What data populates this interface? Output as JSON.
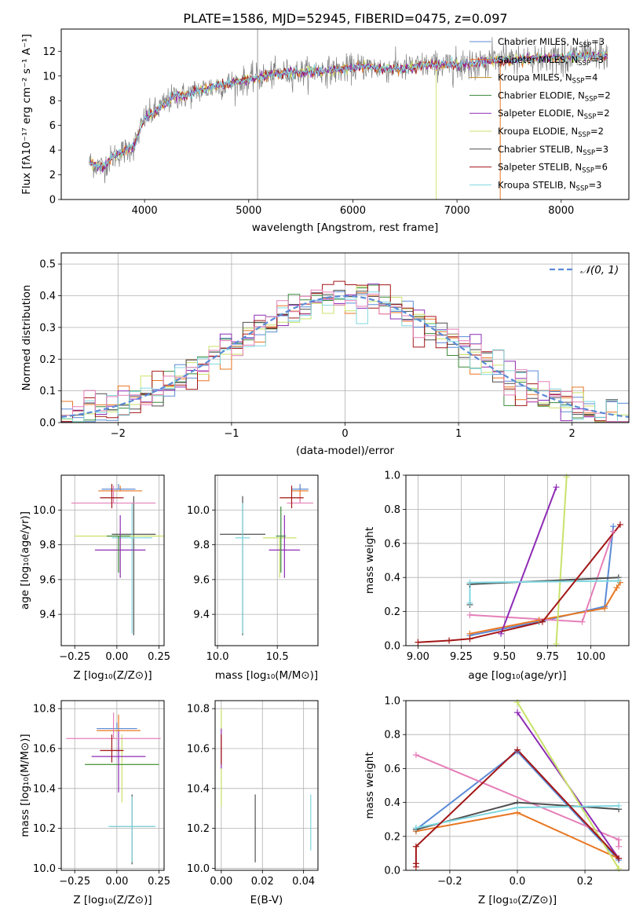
{
  "colors": {
    "c1": "#5b8bd6",
    "c2": "#e87722",
    "c3": "#c08a1d",
    "c4": "#3a8a3a",
    "c5": "#8e2bb5",
    "c6": "#c9e26a",
    "c7": "#4f4f4f",
    "c8": "#a31616",
    "c9": "#7fd7e0",
    "pink": "#e57fb8",
    "normal": "#5b8bd6"
  },
  "chart_data": [
    {
      "type": "line",
      "title": "PLATE=1586, MJD=52945, FIBERID=0475, z=0.097",
      "xlabel": "wavelength [Angstrom, rest frame]",
      "ylabel": "Flux [fλ10⁻¹⁷ erg cm⁻² s⁻¹ A⁻¹]",
      "xlim": [
        3200,
        8650
      ],
      "ylim": [
        0,
        13.8
      ],
      "xticks": [
        "4000",
        "5000",
        "6000",
        "7000",
        "8000"
      ],
      "yticks": [
        "0",
        "2",
        "4",
        "6",
        "8",
        "10",
        "12"
      ],
      "legend": [
        "Chabrier MILES, N_SSP=3",
        "Salpeter MILES, N_SSP=3",
        "Kroupa MILES, N_SSP=4",
        "Chabrier ELODIE, N_SSP=2",
        "Salpeter ELODIE, N_SSP=2",
        "Kroupa ELODIE, N_SSP=2",
        "Chabrier STELIB, N_SSP=3",
        "Salpeter STELIB, N_SSP=6",
        "Kroupa STELIB, N_SSP=3"
      ],
      "legend_display": [
        [
          "Chabrier MILES, N",
          "SSP",
          "=3"
        ],
        [
          "Salpeter MILES, N",
          "SSP",
          "=3"
        ],
        [
          "Kroupa MILES, N",
          "SSP",
          "=4"
        ],
        [
          "Chabrier ELODIE, N",
          "SSP",
          "=2"
        ],
        [
          "Salpeter ELODIE, N",
          "SSP",
          "=2"
        ],
        [
          "Kroupa ELODIE, N",
          "SSP",
          "=2"
        ],
        [
          "Chabrier STELIB, N",
          "SSP",
          "=3"
        ],
        [
          "Salpeter STELIB, N",
          "SSP",
          "=6"
        ],
        [
          "Kroupa STELIB, N",
          "SSP",
          "=3"
        ]
      ],
      "legend_position": "right",
      "series_continuum": {
        "x": [
          3470,
          3600,
          3700,
          3800,
          3900,
          4000,
          4100,
          4200,
          4300,
          4400,
          4500,
          4700,
          4900,
          5100,
          5300,
          5500,
          5700,
          5900,
          6100,
          6300,
          6500,
          6700,
          6900,
          7100,
          7300,
          7500,
          7700,
          7900,
          8100,
          8300,
          8450
        ],
        "y": [
          3.0,
          2.6,
          3.5,
          3.9,
          4.3,
          6.6,
          7.1,
          7.8,
          8.4,
          8.4,
          8.8,
          9.2,
          9.5,
          9.9,
          10.2,
          10.3,
          10.4,
          10.5,
          10.8,
          10.6,
          10.6,
          10.9,
          10.9,
          11.0,
          11.2,
          11.3,
          11.4,
          11.5,
          11.6,
          11.6,
          11.6
        ]
      }
    },
    {
      "type": "area",
      "xlabel": "(data-model)/error",
      "ylabel": "Normed distribution",
      "xlim": [
        -2.5,
        2.5
      ],
      "ylim": [
        0,
        0.535
      ],
      "xticks": [
        "−2",
        "−1",
        "0",
        "1",
        "2"
      ],
      "yticks": [
        "0.0",
        "0.1",
        "0.2",
        "0.3",
        "0.4",
        "0.5"
      ],
      "legend": [
        "𝒩(0, 1)"
      ],
      "legend_position": "top-right",
      "normal_curve": {
        "mu": 0,
        "sigma": 1
      }
    },
    {
      "type": "scatter",
      "xlabel": "Z [log₁₀(Z/Z⊙)]",
      "ylabel": "age  [log₁₀(age/yr)]",
      "xlim": [
        -0.33,
        0.28
      ],
      "ylim": [
        9.22,
        10.2
      ],
      "xticks": [
        "−0.25",
        "0.00",
        "0.25"
      ],
      "yticks": [
        "9.4",
        "9.6",
        "9.8",
        "10.0"
      ],
      "points": [
        {
          "x": 0.1,
          "y": 9.86,
          "xerr": 0.13,
          "yerr": [
            0.58,
            0.22
          ],
          "color": "c7"
        },
        {
          "x": 0.09,
          "y": 9.84,
          "xerr": 0.12,
          "yerr": [
            0.55,
            0.2
          ],
          "color": "c9"
        },
        {
          "x": 0.02,
          "y": 9.85,
          "xerr": 0.27,
          "yerr": [
            0.24,
            0.0
          ],
          "color": "c6"
        },
        {
          "x": 0.02,
          "y": 9.77,
          "xerr": 0.15,
          "yerr": [
            0.16,
            0.2
          ],
          "color": "c5"
        },
        {
          "x": 0.01,
          "y": 9.85,
          "xerr": 0.07,
          "yerr": [
            0.21,
            0.0
          ],
          "color": "c4"
        },
        {
          "x": 0.02,
          "y": 10.11,
          "xerr": 0.13,
          "yerr": [
            0.0,
            0.03
          ],
          "color": "c2"
        },
        {
          "x": 0.01,
          "y": 10.12,
          "xerr": 0.1,
          "yerr": [
            0.0,
            0.03
          ],
          "color": "c1"
        },
        {
          "x": -0.02,
          "y": 10.04,
          "xerr": 0.25,
          "yerr": [
            0.0,
            0.1
          ],
          "color": "pink"
        },
        {
          "x": -0.03,
          "y": 10.07,
          "xerr": 0.07,
          "yerr": [
            0.06,
            0.08
          ],
          "color": "c8"
        }
      ]
    },
    {
      "type": "scatter",
      "xlabel": "mass [log₁₀(M/M⊙)]",
      "ylabel": "",
      "xlim": [
        9.98,
        10.84
      ],
      "ylim": [
        9.22,
        10.2
      ],
      "xticks": [
        "10.0",
        "10.5"
      ],
      "yticks": [
        "9.4",
        "9.6",
        "9.8",
        "10.0"
      ],
      "points": [
        {
          "x": 10.21,
          "y": 9.86,
          "xerr": 0.19,
          "yerr": [
            0.58,
            0.22
          ],
          "color": "c7"
        },
        {
          "x": 10.21,
          "y": 9.84,
          "xerr": 0.06,
          "yerr": [
            0.55,
            0.2
          ],
          "color": "c9"
        },
        {
          "x": 10.52,
          "y": 9.84,
          "xerr": 0.14,
          "yerr": [
            0.23,
            0.0
          ],
          "color": "c6"
        },
        {
          "x": 10.56,
          "y": 9.77,
          "xerr": 0.13,
          "yerr": [
            0.16,
            0.2
          ],
          "color": "c5"
        },
        {
          "x": 10.53,
          "y": 9.85,
          "xerr": 0.04,
          "yerr": [
            0.21,
            0.17
          ],
          "color": "c4"
        },
        {
          "x": 10.69,
          "y": 10.11,
          "xerr": 0.07,
          "yerr": [
            0.06,
            0.03
          ],
          "color": "c2"
        },
        {
          "x": 10.69,
          "y": 10.12,
          "xerr": 0.07,
          "yerr": [
            0.0,
            0.03
          ],
          "color": "c1"
        },
        {
          "x": 10.69,
          "y": 10.04,
          "xerr": 0.11,
          "yerr": [
            0.0,
            0.04
          ],
          "color": "pink"
        },
        {
          "x": 10.62,
          "y": 10.07,
          "xerr": 0.1,
          "yerr": [
            0.06,
            0.07
          ],
          "color": "c8"
        }
      ]
    },
    {
      "type": "line",
      "xlabel": "age  [log₁₀(age/yr)]",
      "ylabel": "mass weight",
      "xlim": [
        8.93,
        10.22
      ],
      "ylim": [
        0,
        1.0
      ],
      "xticks": [
        "9.00",
        "9.25",
        "9.50",
        "9.75",
        "10.00"
      ],
      "yticks": [
        "0.0",
        "0.2",
        "0.4",
        "0.6",
        "0.8",
        "1.0"
      ],
      "series": [
        {
          "color": "c1",
          "x": [
            9.3,
            9.7,
            10.08,
            10.13
          ],
          "y": [
            0.06,
            0.14,
            0.23,
            0.7
          ]
        },
        {
          "color": "c2",
          "x": [
            9.3,
            9.7,
            10.08,
            10.15,
            10.17
          ],
          "y": [
            0.07,
            0.15,
            0.22,
            0.34,
            0.37
          ]
        },
        {
          "color": "pink",
          "x": [
            9.3,
            9.95,
            10.13
          ],
          "y": [
            0.18,
            0.14,
            0.67
          ]
        },
        {
          "color": "c5",
          "x": [
            9.48,
            9.8
          ],
          "y": [
            0.07,
            0.93
          ]
        },
        {
          "color": "c6",
          "x": [
            9.8,
            9.86
          ],
          "y": [
            0.01,
            0.99
          ]
        },
        {
          "color": "c7",
          "x": [
            9.3,
            9.3,
            10.16
          ],
          "y": [
            0.24,
            0.36,
            0.4
          ]
        },
        {
          "color": "c9",
          "x": [
            9.3,
            9.3,
            10.16
          ],
          "y": [
            0.25,
            0.37,
            0.38
          ]
        },
        {
          "color": "c8",
          "x": [
            9.0,
            9.18,
            9.3,
            9.72,
            10.17
          ],
          "y": [
            0.02,
            0.03,
            0.04,
            0.14,
            0.71
          ]
        }
      ]
    },
    {
      "type": "scatter",
      "xlabel": "Z [log₁₀(Z/Z⊙)]",
      "ylabel": "mass [log₁₀(M/M⊙)]",
      "xlim": [
        -0.33,
        0.28
      ],
      "ylim": [
        9.99,
        10.84
      ],
      "xticks": [
        "−0.25",
        "0.00",
        "0.25"
      ],
      "yticks": [
        "10.0",
        "10.2",
        "10.4",
        "10.6",
        "10.8"
      ],
      "points": [
        {
          "x": 0.09,
          "y": 10.21,
          "xerr": 0.13,
          "yerr": [
            0.19,
            0.16
          ],
          "color": "c7"
        },
        {
          "x": 0.09,
          "y": 10.21,
          "xerr": 0.14,
          "yerr": [
            0.18,
            0.15
          ],
          "color": "c9"
        },
        {
          "x": 0.03,
          "y": 10.52,
          "xerr": 0.22,
          "yerr": [
            0.19,
            0.15
          ],
          "color": "c6"
        },
        {
          "x": 0.03,
          "y": 10.52,
          "xerr": 0.22,
          "yerr": [
            0.0,
            0.0
          ],
          "color": "c4"
        },
        {
          "x": 0.01,
          "y": 10.56,
          "xerr": 0.16,
          "yerr": [
            0.18,
            0.13
          ],
          "color": "c5"
        },
        {
          "x": 0.01,
          "y": 10.69,
          "xerr": 0.13,
          "yerr": [
            0.0,
            0.08
          ],
          "color": "c2"
        },
        {
          "x": 0.0,
          "y": 10.7,
          "xerr": 0.12,
          "yerr": [
            0.0,
            0.03
          ],
          "color": "c1"
        },
        {
          "x": -0.02,
          "y": 10.65,
          "xerr": 0.28,
          "yerr": [
            0.0,
            0.13
          ],
          "color": "pink"
        },
        {
          "x": -0.03,
          "y": 10.59,
          "xerr": 0.07,
          "yerr": [
            0.06,
            0.08
          ],
          "color": "c8"
        }
      ]
    },
    {
      "type": "scatter",
      "xlabel": "E(B-V)",
      "ylabel": "",
      "xlim": [
        -0.003,
        0.047
      ],
      "ylim": [
        9.99,
        10.84
      ],
      "xticks": [
        "0.00",
        "0.02",
        "0.04"
      ],
      "yticks": [
        "10.0",
        "10.2",
        "10.4",
        "10.6",
        "10.8"
      ],
      "points": [
        {
          "x": 0.0165,
          "y": 10.2,
          "yerr": [
            0.17,
            0.17
          ],
          "color": "c7"
        },
        {
          "x": 0.0435,
          "y": 10.23,
          "yerr": [
            0.14,
            0.14
          ],
          "color": "c9"
        },
        {
          "x": 0.0,
          "y": 10.55,
          "yerr": [
            0.24,
            0.25
          ],
          "color": "c6"
        },
        {
          "x": 0.0,
          "y": 10.6,
          "yerr": [
            0.1,
            0.1
          ],
          "color": "c5"
        },
        {
          "x": 0.0,
          "y": 10.6,
          "yerr": [
            0.08,
            0.07
          ],
          "color": "c8"
        }
      ]
    },
    {
      "type": "line",
      "xlabel": "Z [log₁₀(Z/Z⊙)]",
      "ylabel": "mass weight",
      "xlim": [
        -0.33,
        0.33
      ],
      "ylim": [
        0,
        1.0
      ],
      "xticks": [
        "−0.2",
        "0.0",
        "0.2"
      ],
      "yticks": [
        "0.0",
        "0.2",
        "0.4",
        "0.6",
        "0.8",
        "1.0"
      ],
      "series": [
        {
          "color": "c1",
          "x": [
            -0.3,
            0.0,
            0.3
          ],
          "y": [
            0.24,
            0.7,
            0.06
          ]
        },
        {
          "color": "c2",
          "x": [
            -0.3,
            0.0,
            0.3
          ],
          "y": [
            0.23,
            0.34,
            0.07
          ]
        },
        {
          "color": "pink",
          "x": [
            -0.3,
            0.3,
            0.3
          ],
          "y": [
            0.68,
            0.18,
            0.14
          ]
        },
        {
          "color": "c5",
          "x": [
            0.0,
            0.3
          ],
          "y": [
            0.93,
            0.07
          ]
        },
        {
          "color": "c6",
          "x": [
            0.0,
            0.3
          ],
          "y": [
            0.99,
            0.01
          ]
        },
        {
          "color": "c7",
          "x": [
            -0.3,
            0.0,
            0.3
          ],
          "y": [
            0.24,
            0.4,
            0.36
          ]
        },
        {
          "color": "c9",
          "x": [
            -0.3,
            0.0,
            0.3
          ],
          "y": [
            0.25,
            0.37,
            0.38
          ]
        },
        {
          "color": "c8",
          "x": [
            -0.3,
            -0.3,
            -0.3,
            0.0,
            0.3
          ],
          "y": [
            0.02,
            0.04,
            0.14,
            0.71,
            0.07
          ]
        }
      ]
    }
  ]
}
